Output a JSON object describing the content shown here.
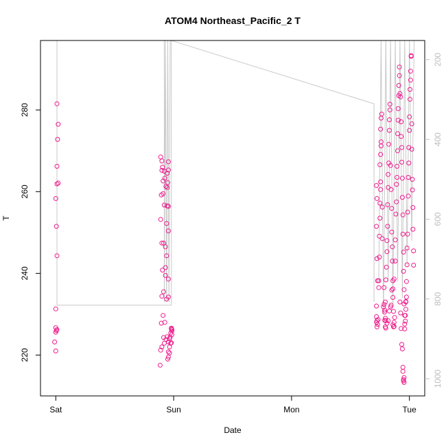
{
  "chart_data": {
    "type": "scatter",
    "title": "ATOM4 Northeast_Pacific_2 T",
    "xlabel": "Date",
    "ylabel": "T",
    "x_ticks": [
      "Sat",
      "Sun",
      "Mon",
      "Tue"
    ],
    "x_tick_values": [
      0,
      1,
      2,
      3
    ],
    "xlim": [
      -0.13,
      3.13
    ],
    "ylim": [
      210,
      297
    ],
    "y_ticks": [
      220,
      240,
      260,
      280
    ],
    "y2lim": [
      1043,
      152
    ],
    "y2_ticks": [
      200,
      400,
      600,
      800,
      1000
    ],
    "grid": false,
    "colors": {
      "point_stroke": "#ee1a8c",
      "line": "#c8c8c8",
      "axis": "#000000",
      "right_axis": "#bdbdbd"
    },
    "series": [
      {
        "points": [
          [
            0.01,
            281.5
          ],
          [
            0.02,
            276.5
          ],
          [
            0.015,
            272.8
          ],
          [
            0.01,
            266.2
          ],
          [
            0.02,
            262.1
          ],
          [
            0.01,
            261.9
          ],
          [
            0.0,
            258.3
          ],
          [
            0.005,
            251.5
          ],
          [
            0.01,
            244.3
          ],
          [
            0.0,
            231.3
          ],
          [
            0.0,
            226.7
          ],
          [
            0.005,
            226.0
          ],
          [
            0.0,
            225.6
          ],
          [
            -0.01,
            223.2
          ],
          [
            0.0,
            221.0
          ],
          [
            0.01,
            226.2
          ],
          [
            0.89,
            268.5
          ],
          [
            0.9,
            267.5
          ],
          [
            0.905,
            266.0
          ],
          [
            0.9,
            265.2
          ],
          [
            0.92,
            265.0
          ],
          [
            0.925,
            263.3
          ],
          [
            0.91,
            262.6
          ],
          [
            0.935,
            261.3
          ],
          [
            0.945,
            261.0
          ],
          [
            0.95,
            262.2
          ],
          [
            0.955,
            267.3
          ],
          [
            0.955,
            265.3
          ],
          [
            0.945,
            264.5
          ],
          [
            0.895,
            259.2
          ],
          [
            0.91,
            259.5
          ],
          [
            0.92,
            256.7
          ],
          [
            0.945,
            256.5
          ],
          [
            0.955,
            256.4
          ],
          [
            0.89,
            253.2
          ],
          [
            0.94,
            252.2
          ],
          [
            0.955,
            250.4
          ],
          [
            0.9,
            247.4
          ],
          [
            0.915,
            247.4
          ],
          [
            0.93,
            246.5
          ],
          [
            0.94,
            244.3
          ],
          [
            0.93,
            241.4
          ],
          [
            0.905,
            240.8
          ],
          [
            0.93,
            239.5
          ],
          [
            0.955,
            238.6
          ],
          [
            0.915,
            235.5
          ],
          [
            0.9,
            234.4
          ],
          [
            0.94,
            233.7
          ],
          [
            0.955,
            234.2
          ],
          [
            0.91,
            229.7
          ],
          [
            0.925,
            228.0
          ],
          [
            0.895,
            227.8
          ],
          [
            0.915,
            224.3
          ],
          [
            0.935,
            223.8
          ],
          [
            0.945,
            224.5
          ],
          [
            0.955,
            223.2
          ],
          [
            0.975,
            222.9
          ],
          [
            0.965,
            222.0
          ],
          [
            0.955,
            220.8
          ],
          [
            0.965,
            220.5
          ],
          [
            0.955,
            219.5
          ],
          [
            0.95,
            219.0
          ],
          [
            0.92,
            222.9
          ],
          [
            0.9,
            222.0
          ],
          [
            0.89,
            221.2
          ],
          [
            0.885,
            217.5
          ],
          [
            0.98,
            226.4
          ],
          [
            0.975,
            225.4
          ],
          [
            0.985,
            225.9
          ],
          [
            0.98,
            226.6
          ],
          [
            0.985,
            226.2
          ],
          [
            0.985,
            225.0
          ],
          [
            0.97,
            224.4
          ],
          [
            0.98,
            223.0
          ],
          [
            0.965,
            224.0
          ],
          [
            2.72,
            261.5
          ],
          [
            2.725,
            258.3
          ],
          [
            2.72,
            251.5
          ],
          [
            2.725,
            243.6
          ],
          [
            2.73,
            238.2
          ],
          [
            2.72,
            232.0
          ],
          [
            2.72,
            229.4
          ],
          [
            2.725,
            228.4
          ],
          [
            2.73,
            227.5
          ],
          [
            2.72,
            228.0
          ],
          [
            2.725,
            226.9
          ],
          [
            2.735,
            228.7
          ],
          [
            2.74,
            236.5
          ],
          [
            2.74,
            238.2
          ],
          [
            2.745,
            244.0
          ],
          [
            2.745,
            249.1
          ],
          [
            2.75,
            253.5
          ],
          [
            2.75,
            257.2
          ],
          [
            2.755,
            260.5
          ],
          [
            2.755,
            262.4
          ],
          [
            2.75,
            266.6
          ],
          [
            2.755,
            269.1
          ],
          [
            2.76,
            271.2
          ],
          [
            2.76,
            272.2
          ],
          [
            2.755,
            275.3
          ],
          [
            2.76,
            278.0
          ],
          [
            2.765,
            279.0
          ],
          [
            2.77,
            248.5
          ],
          [
            2.77,
            256.2
          ],
          [
            2.78,
            231.8
          ],
          [
            2.785,
            232.4
          ],
          [
            2.79,
            231.0
          ],
          [
            2.795,
            233.0
          ],
          [
            2.79,
            230.5
          ],
          [
            2.795,
            229.0
          ],
          [
            2.8,
            228.4
          ],
          [
            2.8,
            238.4
          ],
          [
            2.805,
            241.5
          ],
          [
            2.81,
            245.3
          ],
          [
            2.81,
            248.0
          ],
          [
            2.815,
            251.5
          ],
          [
            2.815,
            256.8
          ],
          [
            2.82,
            261.0
          ],
          [
            2.82,
            264.2
          ],
          [
            2.825,
            267.0
          ],
          [
            2.825,
            271.6
          ],
          [
            2.83,
            275.0
          ],
          [
            2.83,
            277.6
          ],
          [
            2.835,
            280.0
          ],
          [
            2.835,
            281.4
          ],
          [
            2.84,
            266.4
          ],
          [
            2.845,
            260.5
          ],
          [
            2.85,
            255.9
          ],
          [
            2.85,
            250.1
          ],
          [
            2.855,
            246.5
          ],
          [
            2.855,
            243.0
          ],
          [
            2.86,
            238.2
          ],
          [
            2.86,
            234.1
          ],
          [
            2.865,
            230.7
          ],
          [
            2.87,
            228.0
          ],
          [
            2.865,
            226.9
          ],
          [
            2.86,
            227.4
          ],
          [
            2.87,
            227.0
          ],
          [
            2.875,
            229.2
          ],
          [
            2.88,
            243.0
          ],
          [
            2.88,
            248.2
          ],
          [
            2.885,
            254.5
          ],
          [
            2.89,
            257.5
          ],
          [
            2.89,
            261.8
          ],
          [
            2.895,
            263.5
          ],
          [
            2.895,
            266.2
          ],
          [
            2.9,
            270.0
          ],
          [
            2.9,
            274.2
          ],
          [
            2.905,
            277.5
          ],
          [
            2.905,
            280.3
          ],
          [
            2.91,
            283.5
          ],
          [
            2.91,
            286.0
          ],
          [
            2.915,
            288.4
          ],
          [
            2.915,
            290.5
          ],
          [
            2.92,
            284.0
          ],
          [
            2.925,
            283.2
          ],
          [
            2.93,
            277.1
          ],
          [
            2.93,
            273.5
          ],
          [
            2.935,
            270.8
          ],
          [
            2.935,
            267.2
          ],
          [
            2.94,
            263.3
          ],
          [
            2.94,
            258.6
          ],
          [
            2.945,
            254.3
          ],
          [
            2.945,
            249.6
          ],
          [
            2.95,
            245.2
          ],
          [
            2.95,
            240.5
          ],
          [
            2.955,
            236.0
          ],
          [
            2.955,
            232.5
          ],
          [
            2.96,
            229.7
          ],
          [
            2.96,
            227.6
          ],
          [
            2.965,
            228.3
          ],
          [
            2.97,
            231.2
          ],
          [
            2.97,
            233.1
          ],
          [
            2.975,
            234.2
          ],
          [
            2.975,
            238.0
          ],
          [
            2.98,
            242.1
          ],
          [
            2.98,
            246.2
          ],
          [
            2.985,
            249.6
          ],
          [
            2.985,
            255.0
          ],
          [
            2.99,
            258.9
          ],
          [
            2.99,
            263.5
          ],
          [
            2.995,
            267.0
          ],
          [
            2.995,
            270.8
          ],
          [
            3.0,
            275.0
          ],
          [
            3.0,
            278.3
          ],
          [
            3.005,
            282.6
          ],
          [
            3.005,
            285.0
          ],
          [
            3.01,
            287.3
          ],
          [
            3.01,
            289.5
          ],
          [
            3.015,
            293.3
          ],
          [
            3.015,
            293.1
          ],
          [
            3.02,
            276.6
          ],
          [
            3.02,
            270.4
          ],
          [
            3.025,
            263.0
          ],
          [
            3.025,
            260.4
          ],
          [
            3.03,
            256.1
          ],
          [
            3.03,
            250.8
          ],
          [
            3.035,
            245.5
          ],
          [
            3.035,
            242.0
          ],
          [
            2.92,
            233.0
          ],
          [
            2.925,
            230.3
          ],
          [
            2.93,
            226.5
          ],
          [
            2.935,
            222.6
          ],
          [
            2.94,
            221.5
          ],
          [
            2.945,
            217.0
          ],
          [
            2.945,
            216.0
          ],
          [
            2.95,
            214.0
          ],
          [
            2.95,
            213.7
          ],
          [
            2.955,
            213.3
          ],
          [
            2.955,
            214.5
          ],
          [
            2.96,
            226.4
          ],
          [
            2.965,
            229.7
          ],
          [
            2.97,
            233.0
          ],
          [
            2.785,
            236.5
          ],
          [
            2.79,
            228.5
          ],
          [
            2.795,
            226.9
          ],
          [
            2.8,
            226.6
          ],
          [
            2.81,
            227.8
          ],
          [
            2.82,
            228.4
          ],
          [
            2.83,
            230.8
          ],
          [
            2.84,
            231.8
          ],
          [
            2.845,
            232.2
          ],
          [
            2.85,
            235.9
          ],
          [
            2.86,
            236.2
          ],
          [
            2.87,
            238.6
          ]
        ]
      }
    ],
    "lines": [
      [
        [
          0.01,
          297
        ],
        [
          0.01,
          232.2
        ],
        [
          0.98,
          232.2
        ],
        [
          0.98,
          297
        ]
      ],
      [
        [
          0.92,
          297
        ],
        [
          0.92,
          233
        ],
        [
          0.93,
          297
        ],
        [
          0.94,
          233
        ],
        [
          0.95,
          297
        ],
        [
          0.96,
          233
        ],
        [
          0.97,
          297
        ]
      ],
      [
        [
          0.98,
          297
        ],
        [
          2.7,
          281.5
        ],
        [
          2.7,
          233
        ]
      ],
      [
        [
          2.74,
          238
        ],
        [
          2.76,
          297
        ],
        [
          2.78,
          230
        ],
        [
          2.8,
          297
        ],
        [
          2.82,
          238
        ],
        [
          2.84,
          297
        ],
        [
          2.86,
          232
        ],
        [
          2.88,
          297
        ],
        [
          2.9,
          238
        ],
        [
          2.92,
          297
        ],
        [
          2.94,
          234
        ],
        [
          2.96,
          297
        ],
        [
          2.98,
          242
        ],
        [
          3.0,
          297
        ],
        [
          3.02,
          248
        ],
        [
          3.04,
          297
        ]
      ]
    ]
  }
}
